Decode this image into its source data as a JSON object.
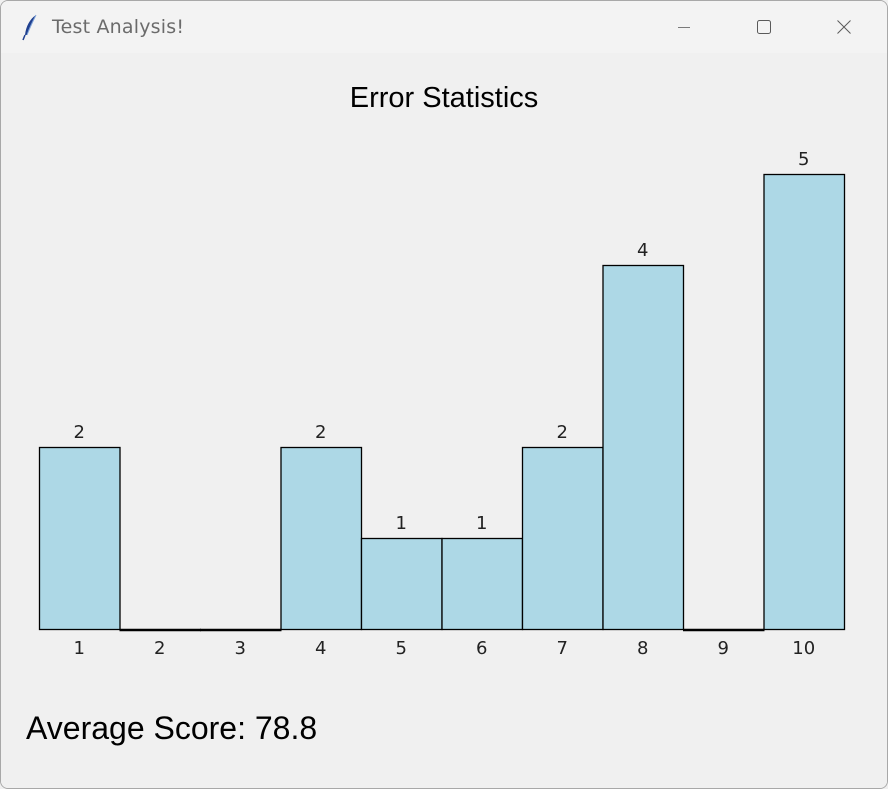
{
  "window": {
    "title": "Test Analysis!",
    "icon": "feather-icon",
    "controls": [
      "minimize-icon",
      "maximize-icon",
      "close-icon"
    ]
  },
  "chart_data": {
    "type": "bar",
    "title": "Error Statistics",
    "xlabel": "",
    "ylabel": "",
    "categories": [
      "1",
      "2",
      "3",
      "4",
      "5",
      "6",
      "7",
      "8",
      "9",
      "10"
    ],
    "values": [
      2,
      0,
      0,
      2,
      1,
      1,
      2,
      4,
      0,
      5
    ],
    "ylim": [
      0,
      5
    ],
    "bar_color": "#add8e6",
    "outline_color": "#000000",
    "grid": false,
    "legend": "none",
    "data_labels_shown_for_nonzero": true
  },
  "footer": {
    "average_score": "Average Score: 78.8"
  }
}
